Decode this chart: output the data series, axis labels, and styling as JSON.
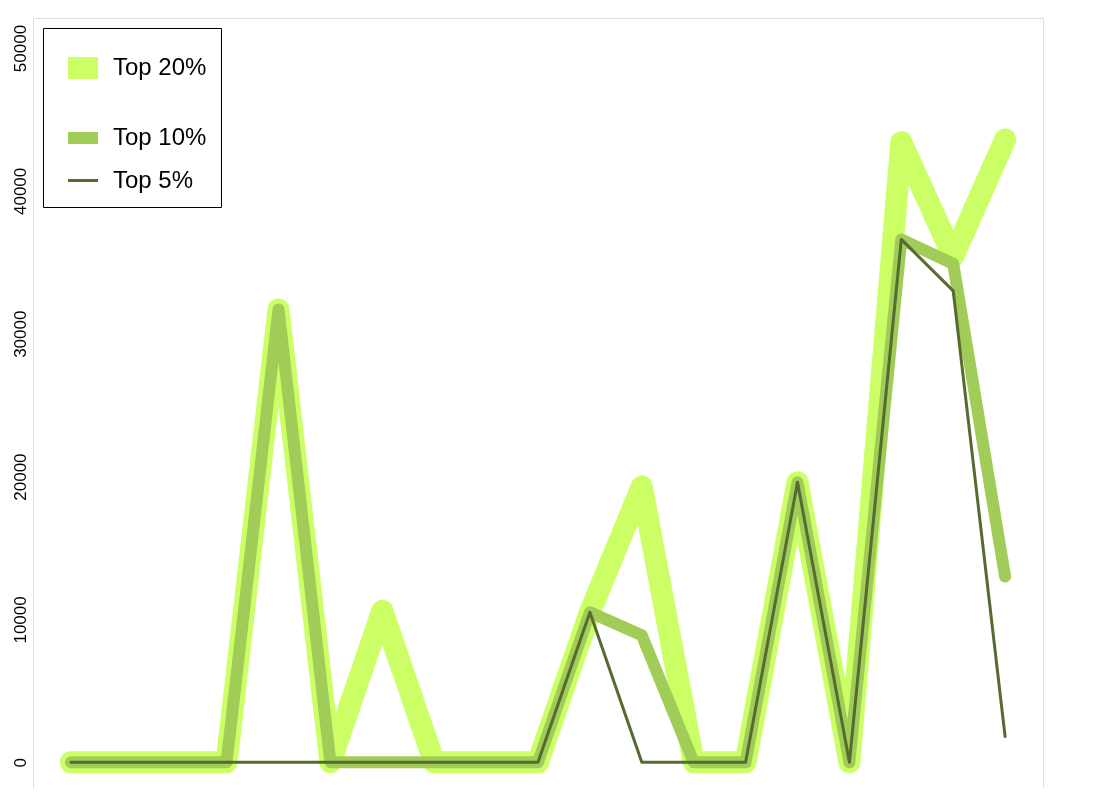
{
  "chart_data": {
    "type": "line",
    "categories": [
      null,
      null,
      null,
      null,
      null,
      null,
      null,
      null,
      null,
      null,
      null,
      null,
      null,
      null,
      null,
      null,
      null,
      null,
      null
    ],
    "series": [
      {
        "name": "Top 20%",
        "color": "#ccff66",
        "values": [
          0,
          0,
          0,
          0,
          31700,
          0,
          10600,
          0,
          0,
          0,
          10500,
          19300,
          0,
          0,
          19600,
          0,
          43400,
          35400,
          43600
        ]
      },
      {
        "name": "Top 10%",
        "color": "#a2cc58",
        "values": [
          0,
          0,
          0,
          0,
          31700,
          0,
          0,
          0,
          0,
          0,
          10500,
          8900,
          0,
          0,
          19600,
          0,
          36600,
          34900,
          13000
        ]
      },
      {
        "name": "Top 5%",
        "color": "#556b2f",
        "values": [
          0,
          0,
          0,
          0,
          0,
          0,
          0,
          0,
          0,
          0,
          10500,
          0,
          0,
          0,
          19600,
          0,
          36600,
          33000,
          1800
        ]
      }
    ],
    "ylim": [
      -1800,
      52100
    ],
    "yticks": [
      0,
      10000,
      20000,
      30000,
      40000,
      50000
    ],
    "grid": false,
    "legend": "top left",
    "tick_labels": "y",
    "line_style": "solid"
  }
}
